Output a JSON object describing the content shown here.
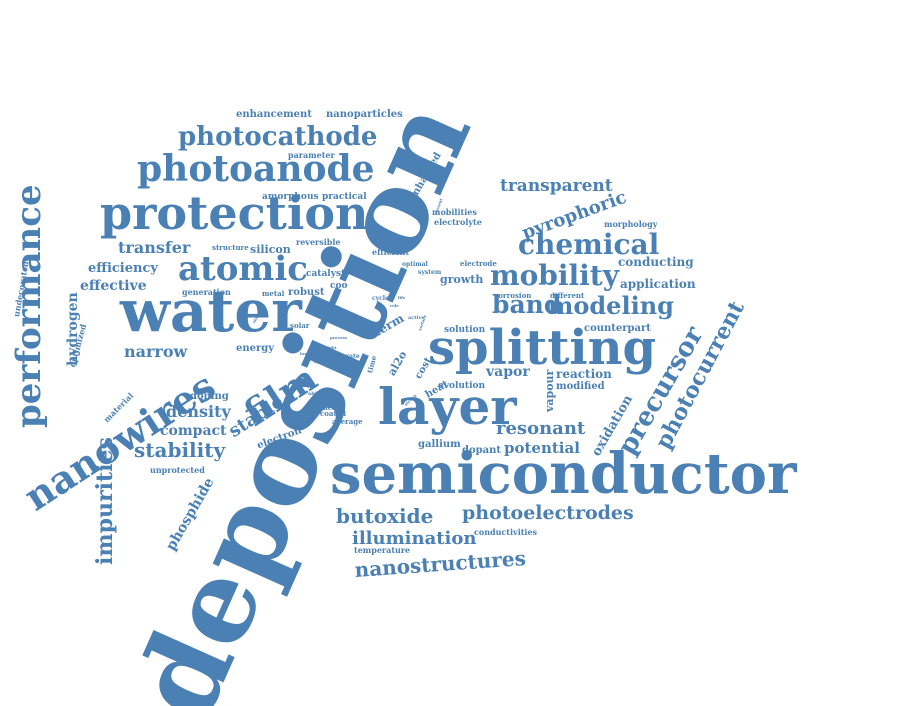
{
  "cloud": {
    "color": "#4a80b3",
    "words": [
      {
        "text": "deposition",
        "weight": 100
      },
      {
        "text": "semiconductor",
        "weight": 56
      },
      {
        "text": "water",
        "weight": 58
      },
      {
        "text": "protection",
        "weight": 46
      },
      {
        "text": "splitting",
        "weight": 48
      },
      {
        "text": "layer",
        "weight": 50
      },
      {
        "text": "photoanode",
        "weight": 36
      },
      {
        "text": "atomic",
        "weight": 34
      },
      {
        "text": "nanowires",
        "weight": 38
      },
      {
        "text": "performance",
        "weight": 34
      },
      {
        "text": "film",
        "weight": 36
      },
      {
        "text": "mobility",
        "weight": 28
      },
      {
        "text": "chemical",
        "weight": 28
      },
      {
        "text": "photocathode",
        "weight": 26
      },
      {
        "text": "band",
        "weight": 25
      },
      {
        "text": "modeling",
        "weight": 24
      },
      {
        "text": "precursor",
        "weight": 26
      },
      {
        "text": "photocurrent",
        "weight": 22
      },
      {
        "text": "nanostructures",
        "weight": 20
      },
      {
        "text": "photoelectrodes",
        "weight": 19
      },
      {
        "text": "butoxide",
        "weight": 20
      },
      {
        "text": "illumination",
        "weight": 18
      },
      {
        "text": "impurities",
        "weight": 22
      },
      {
        "text": "stability",
        "weight": 20
      },
      {
        "text": "stable",
        "weight": 18
      },
      {
        "text": "resonant",
        "weight": 18
      },
      {
        "text": "transparent",
        "weight": 17
      },
      {
        "text": "pyrophoric",
        "weight": 18
      },
      {
        "text": "transfer",
        "weight": 16
      },
      {
        "text": "narrow",
        "weight": 16
      },
      {
        "text": "density",
        "weight": 16
      },
      {
        "text": "potential",
        "weight": 15
      },
      {
        "text": "phosphide",
        "weight": 14
      },
      {
        "text": "compact",
        "weight": 14
      },
      {
        "text": "vapor",
        "weight": 14
      },
      {
        "text": "hydrogen",
        "weight": 14
      },
      {
        "text": "effective",
        "weight": 14
      },
      {
        "text": "efficiency",
        "weight": 13
      },
      {
        "text": "reaction",
        "weight": 12
      },
      {
        "text": "oxidation",
        "weight": 13
      },
      {
        "text": "application",
        "weight": 12
      },
      {
        "text": "conducting",
        "weight": 12
      },
      {
        "text": "enhancement",
        "weight": 10
      },
      {
        "text": "nanoparticles",
        "weight": 10
      },
      {
        "text": "enhanced",
        "weight": 10
      },
      {
        "text": "silicon",
        "weight": 11
      },
      {
        "text": "term",
        "weight": 12
      },
      {
        "text": "al2o",
        "weight": 11
      },
      {
        "text": "vapour",
        "weight": 11
      },
      {
        "text": "modified",
        "weight": 10
      },
      {
        "text": "counterpart",
        "weight": 10
      },
      {
        "text": "growth",
        "weight": 11
      },
      {
        "text": "robust",
        "weight": 10
      },
      {
        "text": "gallium",
        "weight": 10
      },
      {
        "text": "dopant",
        "weight": 10
      },
      {
        "text": "doping",
        "weight": 10
      },
      {
        "text": "energy",
        "weight": 10
      },
      {
        "text": "electron",
        "weight": 10
      },
      {
        "text": "more",
        "weight": 9
      },
      {
        "text": "heat",
        "weight": 10
      },
      {
        "text": "cost",
        "weight": 10
      },
      {
        "text": "solution",
        "weight": 9
      },
      {
        "text": "evolution",
        "weight": 9
      },
      {
        "text": "catalyst",
        "weight": 9
      },
      {
        "text": "practical",
        "weight": 9
      },
      {
        "text": "amorphous",
        "weight": 9
      },
      {
        "text": "parameter",
        "weight": 8
      },
      {
        "text": "reversible",
        "weight": 8
      },
      {
        "text": "efficient",
        "weight": 8
      },
      {
        "text": "mobilities",
        "weight": 8
      },
      {
        "text": "electrolyte",
        "weight": 8
      },
      {
        "text": "morphology",
        "weight": 8
      },
      {
        "text": "electrode",
        "weight": 7
      },
      {
        "text": "corrosion",
        "weight": 7
      },
      {
        "text": "different",
        "weight": 7
      },
      {
        "text": "structure",
        "weight": 7
      },
      {
        "text": "generation",
        "weight": 8
      },
      {
        "text": "metal",
        "weight": 7
      },
      {
        "text": "undecorated",
        "weight": 8
      },
      {
        "text": "optimized",
        "weight": 8
      },
      {
        "text": "material",
        "weight": 8
      },
      {
        "text": "unprotected",
        "weight": 8
      },
      {
        "text": "temperature",
        "weight": 8
      },
      {
        "text": "conductivities",
        "weight": 8
      },
      {
        "text": "solar",
        "weight": 7
      },
      {
        "text": "higher",
        "weight": 7
      },
      {
        "text": "coated",
        "weight": 7
      },
      {
        "text": "average",
        "weight": 7
      },
      {
        "text": "cycle",
        "weight": 6
      },
      {
        "text": "optimal",
        "weight": 6
      },
      {
        "text": "system",
        "weight": 6
      },
      {
        "text": "coo",
        "weight": 9
      },
      {
        "text": "ability",
        "weight": 5
      },
      {
        "text": "rate",
        "weight": 6
      },
      {
        "text": "time",
        "weight": 7
      },
      {
        "text": "active",
        "weight": 5
      },
      {
        "text": "study",
        "weight": 4
      },
      {
        "text": "light",
        "weight": 4
      },
      {
        "text": "strong",
        "weight": 4
      },
      {
        "text": "process",
        "weight": 4
      },
      {
        "text": "loss",
        "weight": 4
      },
      {
        "text": "low",
        "weight": 4
      },
      {
        "text": "in",
        "weight": 4
      },
      {
        "text": "nm",
        "weight": 4
      },
      {
        "text": "life",
        "weight": 4
      },
      {
        "text": "role",
        "weight": 4
      },
      {
        "text": "surface",
        "weight": 4
      },
      {
        "text": "current",
        "weight": 4
      }
    ]
  }
}
